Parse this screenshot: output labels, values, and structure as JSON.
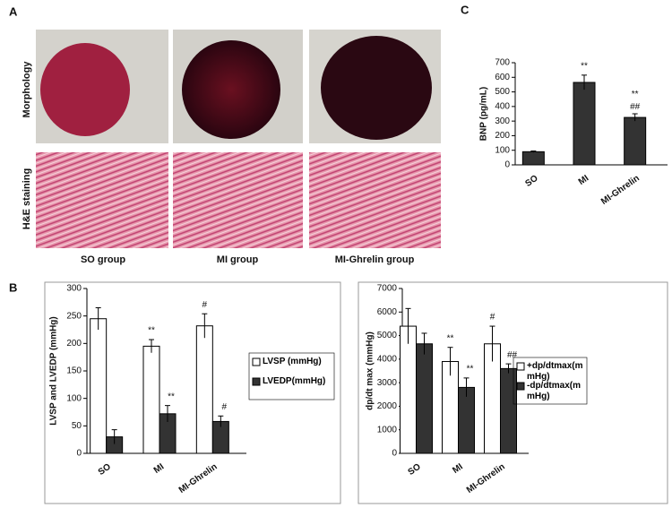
{
  "panel_labels": [
    "A",
    "B",
    "C"
  ],
  "panel_a": {
    "row_labels": [
      "Morphology",
      "H&E staining"
    ],
    "column_labels": [
      "SO group",
      "MI group",
      "MI-Ghrelin group"
    ]
  },
  "chart_data": [
    {
      "type": "bar",
      "ylabel": "BNP (pg/mL)",
      "categories": [
        "SO",
        "MI",
        "MI-Ghrelin"
      ],
      "values": [
        90,
        565,
        325
      ],
      "errors": [
        5,
        50,
        25
      ],
      "annotations": [
        null,
        "**",
        "**\n##"
      ],
      "color": "#333333",
      "ylim": [
        0,
        700
      ],
      "yticks": [
        0,
        100,
        200,
        300,
        400,
        500,
        600,
        700
      ]
    },
    {
      "type": "bar",
      "ylabel": "LVSP and LVEDP (mmHg)",
      "categories": [
        "SO",
        "MI",
        "MI-Ghrelin"
      ],
      "series": [
        {
          "name": "LVSP (mmHg)",
          "color": "#ffffff",
          "values": [
            245,
            195,
            232
          ],
          "errors": [
            20,
            12,
            22
          ],
          "annotations": [
            null,
            "**",
            "#"
          ]
        },
        {
          "name": "LVEDP(mmHg)",
          "color": "#333333",
          "values": [
            30,
            72,
            58
          ],
          "errors": [
            13,
            15,
            10
          ],
          "annotations": [
            null,
            "**",
            "#"
          ]
        }
      ],
      "ylim": [
        0,
        300
      ],
      "yticks": [
        0,
        50,
        100,
        150,
        200,
        250,
        300
      ]
    },
    {
      "type": "bar",
      "ylabel": "dp/dt max (mmHg)",
      "categories": [
        "SO",
        "MI",
        "MI-Ghrelin"
      ],
      "series": [
        {
          "name": "+dp/dtmax(mmHg)",
          "color": "#ffffff",
          "values": [
            5400,
            3900,
            4650
          ],
          "errors": [
            750,
            600,
            750
          ],
          "annotations": [
            null,
            "**",
            "#"
          ]
        },
        {
          "name": "-dp/dtmax(mmHg)",
          "color": "#333333",
          "values": [
            4650,
            2800,
            3600
          ],
          "errors": [
            450,
            400,
            200
          ],
          "annotations": [
            null,
            "**",
            "##"
          ]
        }
      ],
      "ylim": [
        0,
        7000
      ],
      "yticks": [
        0,
        1000,
        2000,
        3000,
        4000,
        5000,
        6000,
        7000
      ]
    }
  ]
}
